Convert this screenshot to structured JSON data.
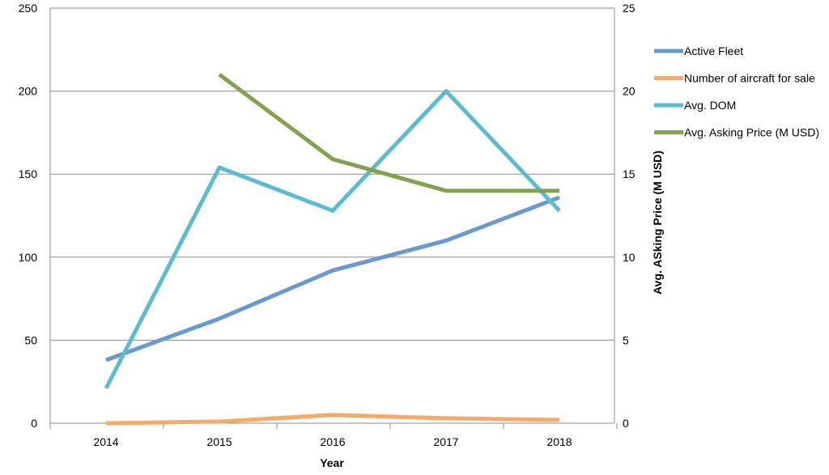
{
  "chart_data": {
    "type": "line",
    "xlabel": "Year",
    "ylabel_left": "",
    "ylabel_right": "Avg. ASking Price (M USD)",
    "categories": [
      "2014",
      "2015",
      "2016",
      "2017",
      "2018"
    ],
    "y_left": {
      "ylim": [
        0,
        250
      ],
      "ticks": [
        "0",
        "50",
        "100",
        "150",
        "200",
        "250"
      ]
    },
    "y_right": {
      "ylim": [
        0,
        25
      ],
      "ticks": [
        "0",
        "5",
        "10",
        "15",
        "20",
        "25"
      ]
    },
    "grid": true,
    "legend_position": "right",
    "series": [
      {
        "name": "Active Fleet",
        "axis": "left",
        "color": "#6a99d0",
        "values": [
          38,
          63,
          92,
          110,
          136
        ]
      },
      {
        "name": "Number of aircraft for sale",
        "axis": "left",
        "color": "#f6a96a",
        "values": [
          0,
          1,
          5,
          3,
          2
        ]
      },
      {
        "name": "Avg. DOM",
        "axis": "left",
        "color": "#5bbccf",
        "values": [
          21,
          154,
          128,
          200,
          128
        ]
      },
      {
        "name": "Avg. Asking Price (M USD)",
        "axis": "right",
        "color": "#82a24d",
        "values": [
          null,
          21,
          15.9,
          14,
          14
        ]
      }
    ]
  }
}
